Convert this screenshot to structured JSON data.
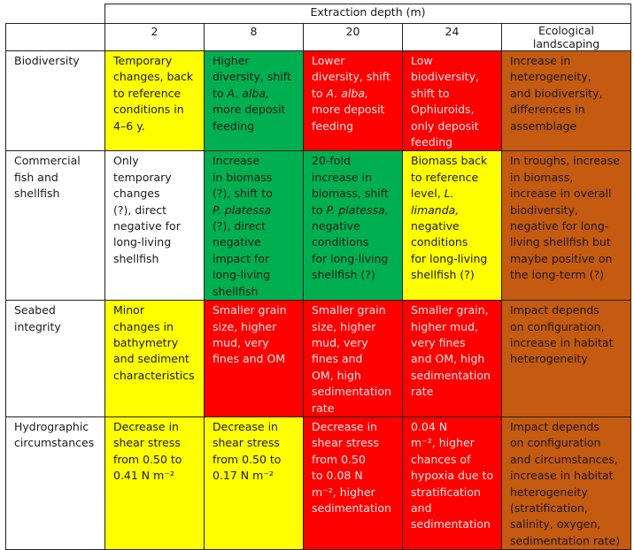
{
  "header": {
    "group_label": "Extraction depth (m)",
    "columns": [
      "2",
      "8",
      "20",
      "24",
      "Ecological\nlandscaping"
    ]
  },
  "rows": [
    {
      "label": "Biodiversity",
      "cells": [
        {
          "color": "#ffff00",
          "text": "Temporary\nchanges, back\nto reference\nconditions in\n4–6 y."
        },
        {
          "color": "#00b050",
          "text_a": "Higher\ndiversity, shift\nto ",
          "ital": "A. alba,",
          "text_b": "\nmore deposit\nfeeding"
        },
        {
          "color": "#ff0000",
          "text_a": "Lower\ndiversity, shift\nto ",
          "ital": "A. alba,",
          "text_b": "\nmore deposit\nfeeding"
        },
        {
          "color": "#ff0000",
          "text": "Low\nbiodiversity,\nshift to\nOphiuroids,\nonly deposit\nfeeding"
        },
        {
          "color": "#c55a11",
          "text": "Increase in\nheterogeneity,\nand biodiversity,\ndifferences in\nassemblage"
        }
      ]
    },
    {
      "label": "Commercial\nfish and\nshellfish",
      "cells": [
        {
          "color": "#ffffff",
          "text": "Only\ntemporary\nchanges\n(?), direct\nnegative for\nlong-living\nshellfish"
        },
        {
          "color": "#00b050",
          "text_a": "Increase\nin biomass\n(?), shift to\n",
          "ital": "P. platessa",
          "text_b": "\n(?), direct\nnegative\nimpact for\nlong-living\nshellfish"
        },
        {
          "color": "#00b050",
          "text_a": "20-fold\nincrease in\nbiomass, shift\nto ",
          "ital": "P. platessa,",
          "text_b": "\nnegative\nconditions\nfor long-living\nshellfish (?)"
        },
        {
          "color": "#ffff00",
          "text_a": "Biomass back\nto reference\nlevel, ",
          "ital": "L.\nlimanda,",
          "text_b": "\nnegative\nconditions\nfor long-living\nshellfish (?)"
        },
        {
          "color": "#c55a11",
          "text": "In troughs, increase\nin biomass,\nincrease in overall\nbiodiversity,\nnegative for long-\nliving shellfish but\nmaybe positive on\nthe long-term (?)"
        }
      ]
    },
    {
      "label": "Seabed\nintegrity",
      "cells": [
        {
          "color": "#ffff00",
          "text": "Minor\nchanges in\nbathymetry\nand sediment\ncharacteristics"
        },
        {
          "color": "#ff0000",
          "text": "Smaller grain\nsize, higher\nmud, very\nfines and OM"
        },
        {
          "color": "#ff0000",
          "text": "Smaller grain\nsize, higher\nmud, very\nfines and\nOM, high\nsedimentation\nrate"
        },
        {
          "color": "#ff0000",
          "text": "Smaller grain,\nhigher mud,\nvery fines\nand OM, high\nsedimentation\nrate"
        },
        {
          "color": "#c55a11",
          "text": "Impact depends\non configuration,\nincrease in habitat\nheterogeneity"
        }
      ]
    },
    {
      "label": "Hydrographic\ncircumstances",
      "cells": [
        {
          "color": "#ffff00",
          "text": "Decrease in\nshear stress\nfrom 0.50 to\n0.41 N m⁻²"
        },
        {
          "color": "#ffff00",
          "text": "Decrease in\nshear stress\nfrom 0.50 to\n0.17 N m⁻²"
        },
        {
          "color": "#ff0000",
          "text": "Decrease in\nshear stress\nfrom 0.50\nto 0.08 N\nm⁻², higher\nsedimentation"
        },
        {
          "color": "#ff0000",
          "text": "0.04 N\nm⁻², higher\nchances of\nhypoxia due to\nstratification\nand\nsedimentation"
        },
        {
          "color": "#c55a11",
          "text": "Impact depends\non configuration\nand circumstances,\nincrease in habitat\nheterogeneity\n(stratification,\nsalinity, oxygen,\nsedimentation rate)"
        }
      ]
    }
  ]
}
